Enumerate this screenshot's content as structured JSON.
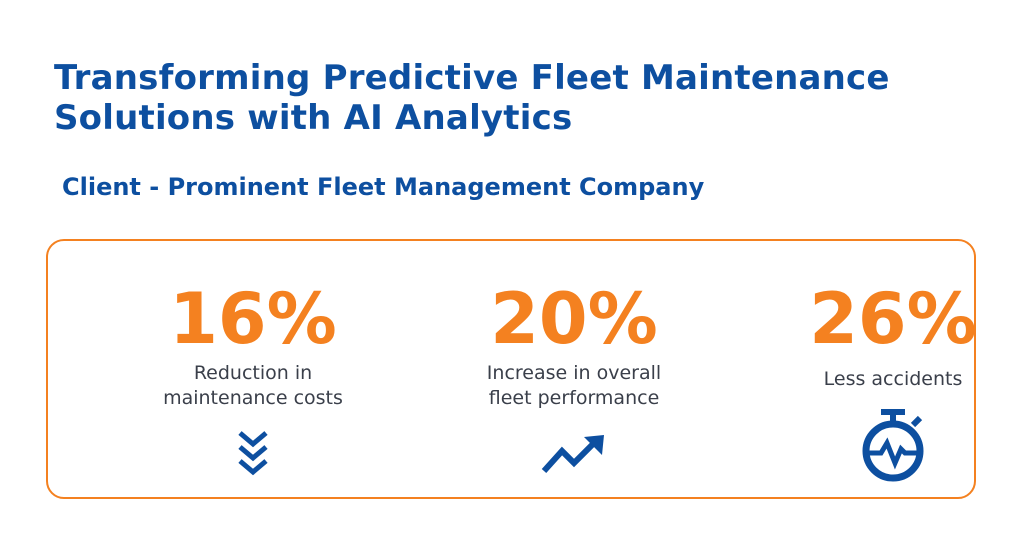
{
  "header": {
    "title_line1": "Transforming Predictive Fleet Maintenance",
    "title_line2": "Solutions with AI Analytics",
    "client": "Client - Prominent Fleet Management Company"
  },
  "colors": {
    "primary_blue": "#0d4fa0",
    "accent_orange": "#f48120",
    "text_gray": "#3a3f4a"
  },
  "stats": [
    {
      "value": "16%",
      "label_line1": "Reduction in",
      "label_line2": "maintenance costs",
      "icon": "double-chevron-down-icon"
    },
    {
      "value": "20%",
      "label_line1": "Increase in overall",
      "label_line2": "fleet performance",
      "icon": "trend-up-icon"
    },
    {
      "value": "26%",
      "label_line1": "Less accidents",
      "label_line2": "",
      "icon": "stopwatch-pulse-icon"
    }
  ]
}
